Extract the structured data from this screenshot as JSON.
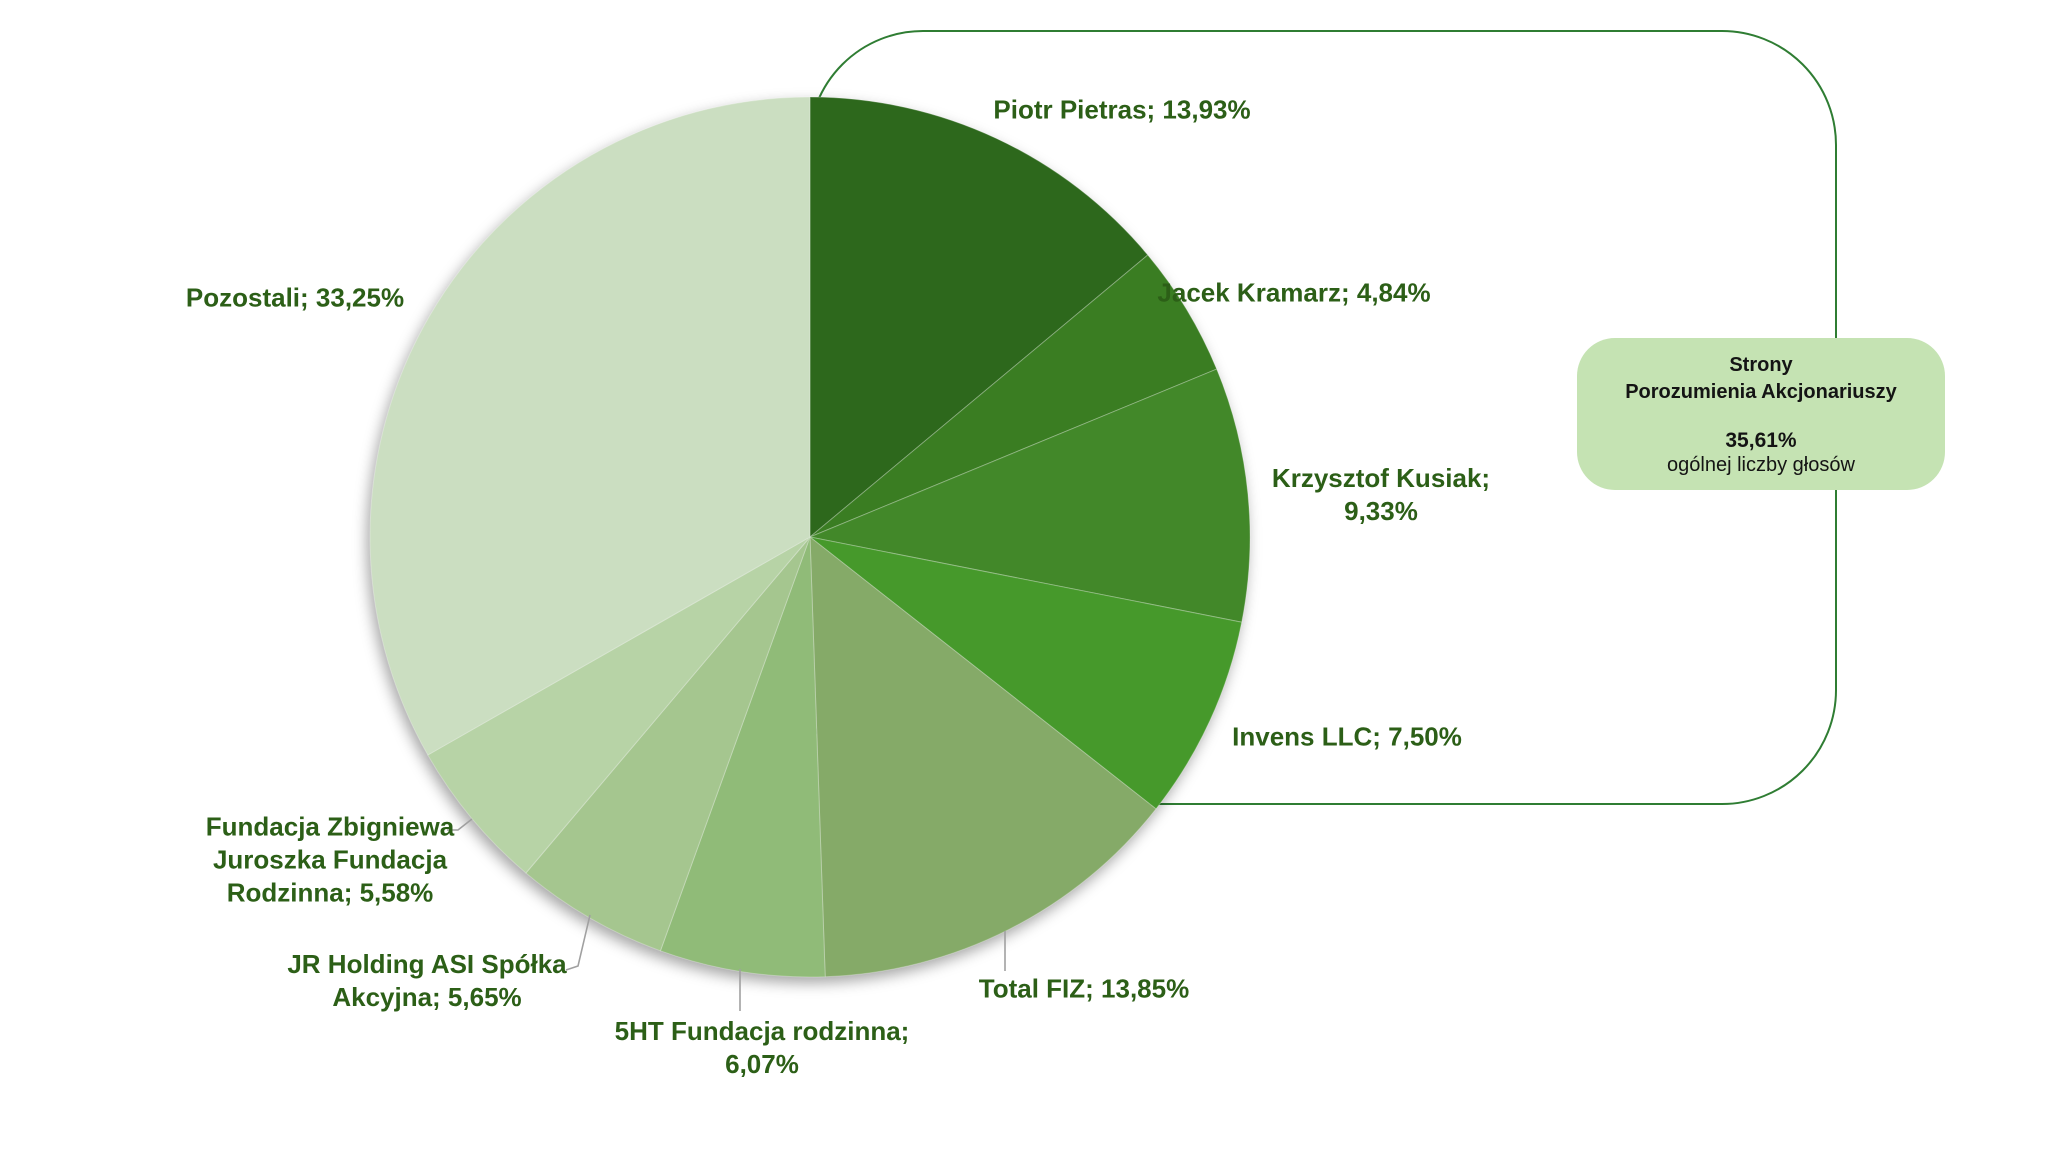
{
  "chart_data": {
    "type": "pie",
    "title": "",
    "legend_position": "none",
    "start_angle_deg": 0,
    "direction": "clockwise",
    "units": "%",
    "slices": [
      {
        "name": "Piotr Pietras",
        "value": 13.93,
        "label": "Piotr Pietras; 13,93%",
        "lines": [
          "Piotr Pietras; 13,93%"
        ],
        "color": "#2d681c"
      },
      {
        "name": "Jacek Kramarz",
        "value": 4.84,
        "label": "Jacek Kramarz; 4,84%",
        "lines": [
          "Jacek Kramarz; 4,84%"
        ],
        "color": "#3a7d22"
      },
      {
        "name": "Krzysztof Kusiak",
        "value": 9.33,
        "label": "Krzysztof Kusiak; 9,33%",
        "lines": [
          "Krzysztof Kusiak;",
          "9,33%"
        ],
        "color": "#428829"
      },
      {
        "name": "Invens LLC",
        "value": 7.5,
        "label": "Invens LLC; 7,50%",
        "lines": [
          "Invens LLC; 7,50%"
        ],
        "color": "#46992b"
      },
      {
        "name": "Total FIZ",
        "value": 13.85,
        "label": "Total FIZ; 13,85%",
        "lines": [
          "Total FIZ; 13,85%"
        ],
        "color": "#85aa68"
      },
      {
        "name": "5HT Fundacja rodzinna",
        "value": 6.07,
        "label": "5HT Fundacja rodzinna; 6,07%",
        "lines": [
          "5HT Fundacja rodzinna;",
          "6,07%"
        ],
        "color": "#90bb78"
      },
      {
        "name": "JR Holding ASI Spółka Akcyjna",
        "value": 5.65,
        "label": "JR Holding ASI Spółka Akcyjna; 5,65%",
        "lines": [
          "JR Holding ASI Spółka",
          "Akcyjna; 5,65%"
        ],
        "color": "#a5c68f"
      },
      {
        "name": "Fundacja Zbigniewa Juroszka Fundacja Rodzinna",
        "value": 5.58,
        "label": "Fundacja Zbigniewa Juroszka Fundacja Rodzinna; 5,58%",
        "lines": [
          "Fundacja Zbigniewa",
          "Juroszka Fundacja",
          "Rodzinna; 5,58%"
        ],
        "color": "#b7d3a6"
      },
      {
        "name": "Pozostali",
        "value": 33.25,
        "label": "Pozostali; 33,25%",
        "lines": [
          "Pozostali; 33,25%"
        ],
        "color": "#cbdec1"
      }
    ]
  },
  "annotation_box": {
    "title_line1": "Strony",
    "title_line2": "Porozumienia Akcjonariuszy",
    "value": "35,61%",
    "caption": "ogólnej liczby głosów",
    "fill_color": "#c5e3b3"
  },
  "colors": {
    "label_text": "#2c5f17",
    "outline_border": "#2f7d33",
    "leader_line": "#a0a0a0",
    "background": "#ffffff"
  }
}
